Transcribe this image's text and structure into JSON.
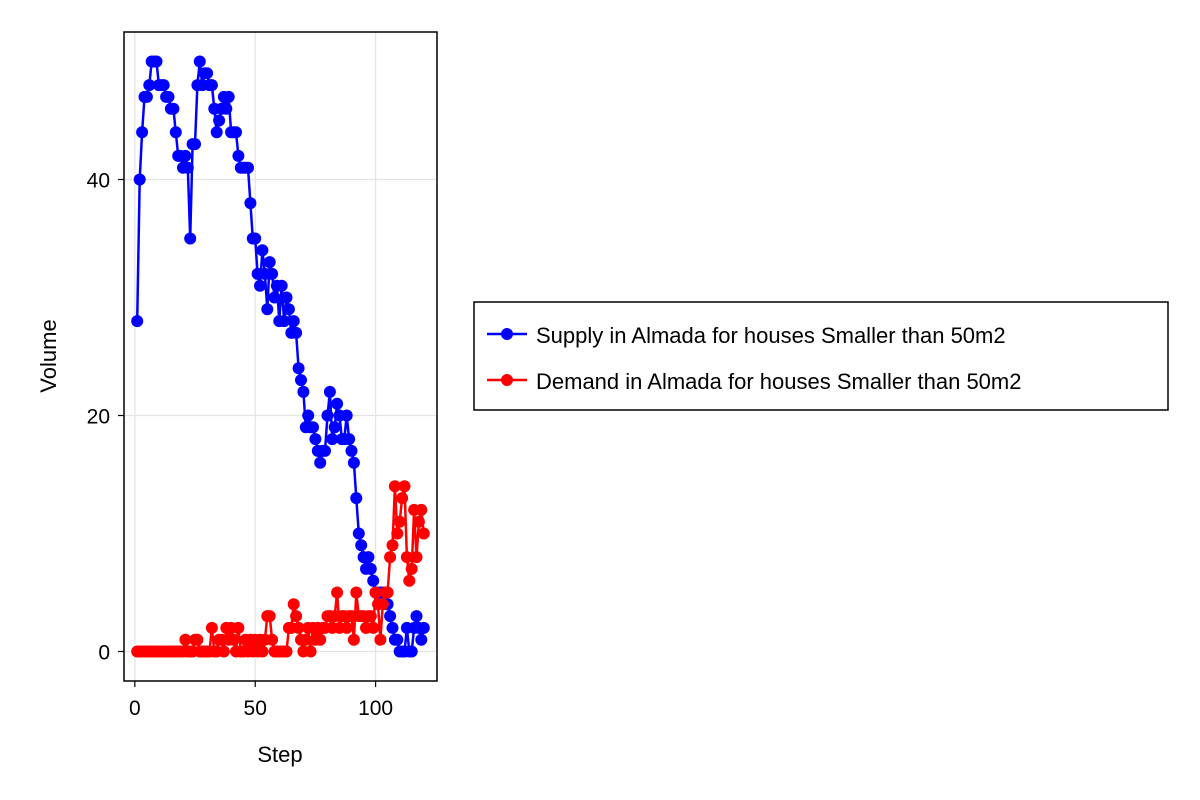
{
  "chart_data": {
    "type": "line",
    "xlabel": "Step",
    "ylabel": "Volume",
    "xlim": [
      -4.5,
      125.5
    ],
    "ylim": [
      -2.5,
      52.5
    ],
    "xticks": [
      0,
      50,
      100
    ],
    "yticks": [
      0,
      20,
      40
    ],
    "grid": true,
    "markers": true,
    "legend_position": "right",
    "series": [
      {
        "name": "Supply in Almada for houses Smaller than 50m2",
        "color": "#0000ff",
        "x": [
          1,
          2,
          3,
          4,
          5,
          6,
          7,
          8,
          9,
          10,
          11,
          12,
          13,
          14,
          15,
          16,
          17,
          18,
          19,
          20,
          21,
          22,
          23,
          24,
          25,
          26,
          27,
          28,
          29,
          30,
          31,
          32,
          33,
          34,
          35,
          36,
          37,
          38,
          39,
          40,
          41,
          42,
          43,
          44,
          45,
          46,
          47,
          48,
          49,
          50,
          51,
          52,
          53,
          54,
          55,
          56,
          57,
          58,
          59,
          60,
          61,
          62,
          63,
          64,
          65,
          66,
          67,
          68,
          69,
          70,
          71,
          72,
          73,
          74,
          75,
          76,
          77,
          78,
          79,
          80,
          81,
          82,
          83,
          84,
          85,
          86,
          87,
          88,
          89,
          90,
          91,
          92,
          93,
          94,
          95,
          96,
          97,
          98,
          99,
          100,
          101,
          102,
          103,
          104,
          105,
          106,
          107,
          108,
          109,
          110,
          111,
          112,
          113,
          114,
          115,
          116,
          117,
          118,
          119,
          120
        ],
        "values": [
          28,
          40,
          44,
          47,
          47,
          48,
          50,
          50,
          50,
          48,
          48,
          48,
          47,
          47,
          46,
          46,
          44,
          42,
          42,
          41,
          42,
          41,
          35,
          43,
          43,
          48,
          50,
          48,
          49,
          49,
          48,
          48,
          46,
          44,
          45,
          46,
          47,
          46,
          47,
          44,
          44,
          44,
          42,
          41,
          41,
          41,
          41,
          38,
          35,
          35,
          32,
          31,
          34,
          32,
          29,
          33,
          32,
          30,
          31,
          28,
          31,
          28,
          30,
          29,
          27,
          28,
          27,
          24,
          23,
          22,
          19,
          20,
          19,
          19,
          18,
          17,
          16,
          17,
          17,
          20,
          22,
          18,
          19,
          21,
          20,
          18,
          18,
          20,
          18,
          17,
          16,
          13,
          10,
          9,
          8,
          7,
          8,
          7,
          6,
          5,
          5,
          5,
          5,
          5,
          4,
          3,
          2,
          1,
          1,
          0,
          0,
          0,
          2,
          0,
          0,
          2,
          3,
          2,
          1,
          2
        ]
      },
      {
        "name": "Demand in Almada for houses Smaller than 50m2",
        "color": "#ff0000",
        "x": [
          1,
          2,
          3,
          4,
          5,
          6,
          7,
          8,
          9,
          10,
          11,
          12,
          13,
          14,
          15,
          16,
          17,
          18,
          19,
          20,
          21,
          22,
          23,
          24,
          25,
          26,
          27,
          28,
          29,
          30,
          31,
          32,
          33,
          34,
          35,
          36,
          37,
          38,
          39,
          40,
          41,
          42,
          43,
          44,
          45,
          46,
          47,
          48,
          49,
          50,
          51,
          52,
          53,
          54,
          55,
          56,
          57,
          58,
          59,
          60,
          61,
          62,
          63,
          64,
          65,
          66,
          67,
          68,
          69,
          70,
          71,
          72,
          73,
          74,
          75,
          76,
          77,
          78,
          79,
          80,
          81,
          82,
          83,
          84,
          85,
          86,
          87,
          88,
          89,
          90,
          91,
          92,
          93,
          94,
          95,
          96,
          97,
          98,
          99,
          100,
          101,
          102,
          103,
          104,
          105,
          106,
          107,
          108,
          109,
          110,
          111,
          112,
          113,
          114,
          115,
          116,
          117,
          118,
          119,
          120
        ],
        "values": [
          0,
          0,
          0,
          0,
          0,
          0,
          0,
          0,
          0,
          0,
          0,
          0,
          0,
          0,
          0,
          0,
          0,
          0,
          0,
          0,
          1,
          0,
          0,
          0,
          1,
          1,
          0,
          0,
          0,
          0,
          0,
          2,
          0,
          0,
          1,
          1,
          0,
          2,
          1,
          2,
          1,
          0,
          2,
          0,
          0,
          1,
          0,
          1,
          0,
          1,
          0,
          1,
          0,
          1,
          3,
          3,
          1,
          0,
          0,
          0,
          0,
          0,
          0,
          2,
          2,
          4,
          3,
          2,
          1,
          0,
          1,
          2,
          0,
          2,
          1,
          2,
          1,
          2,
          2,
          3,
          3,
          2,
          3,
          5,
          2,
          3,
          3,
          2,
          3,
          3,
          1,
          5,
          3,
          3,
          3,
          2,
          3,
          3,
          2,
          5,
          4,
          1,
          4,
          5,
          5,
          8,
          9,
          14,
          10,
          11,
          13,
          14,
          8,
          6,
          7,
          12,
          8,
          11,
          12,
          10
        ]
      }
    ]
  }
}
